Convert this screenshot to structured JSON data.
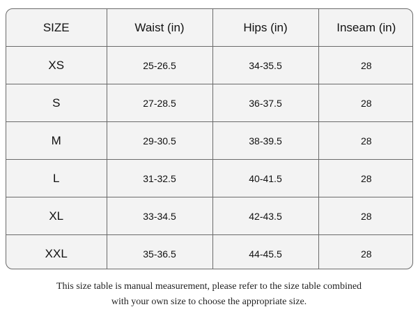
{
  "table": {
    "headers": [
      "SIZE",
      "Waist (in)",
      "Hips (in)",
      "Inseam (in)"
    ],
    "rows": [
      [
        "XS",
        "25-26.5",
        "34-35.5",
        "28"
      ],
      [
        "S",
        "27-28.5",
        "36-37.5",
        "28"
      ],
      [
        "M",
        "29-30.5",
        "38-39.5",
        "28"
      ],
      [
        "L",
        "31-32.5",
        "40-41.5",
        "28"
      ],
      [
        "XL",
        "33-34.5",
        "42-43.5",
        "28"
      ],
      [
        "XXL",
        "35-36.5",
        "44-45.5",
        "28"
      ]
    ]
  },
  "footnote": {
    "line1": "This size table is manual measurement, please refer to the size table combined",
    "line2": "with your own size to choose the appropriate size."
  }
}
